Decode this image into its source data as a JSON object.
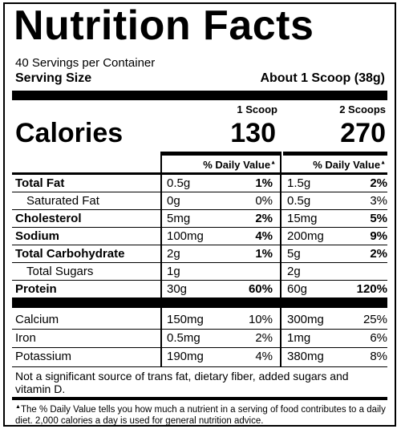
{
  "title": "Nutrition Facts",
  "servings_per_container": "40 Servings per Container",
  "serving_size_label": "Serving Size",
  "serving_size_value": "About 1 Scoop (38g)",
  "column_headers": {
    "col1": "1 Scoop",
    "col2": "2 Scoops"
  },
  "calories": {
    "label": "Calories",
    "col1": "130",
    "col2": "270"
  },
  "daily_value_header": "% Daily Value",
  "daily_value_marker": "▲",
  "nutrients": [
    {
      "name": "Total Fat",
      "bold": true,
      "indent": false,
      "amt1": "0.5g",
      "pct1": "1%",
      "amt2": "1.5g",
      "pct2": "2%"
    },
    {
      "name": "Saturated Fat",
      "bold": false,
      "indent": true,
      "amt1": "0g",
      "pct1": "0%",
      "amt2": "0.5g",
      "pct2": "3%"
    },
    {
      "name": "Cholesterol",
      "bold": true,
      "indent": false,
      "amt1": "5mg",
      "pct1": "2%",
      "amt2": "15mg",
      "pct2": "5%"
    },
    {
      "name": "Sodium",
      "bold": true,
      "indent": false,
      "amt1": "100mg",
      "pct1": "4%",
      "amt2": "200mg",
      "pct2": "9%"
    },
    {
      "name": "Total Carbohydrate",
      "bold": true,
      "indent": false,
      "amt1": "2g",
      "pct1": "1%",
      "amt2": "5g",
      "pct2": "2%"
    },
    {
      "name": "Total Sugars",
      "bold": false,
      "indent": true,
      "amt1": "1g",
      "pct1": "",
      "amt2": "2g",
      "pct2": ""
    },
    {
      "name": "Protein",
      "bold": true,
      "indent": false,
      "amt1": "30g",
      "pct1": "60%",
      "amt2": "60g",
      "pct2": "120%"
    }
  ],
  "minerals": [
    {
      "name": "Calcium",
      "amt1": "150mg",
      "pct1": "10%",
      "amt2": "300mg",
      "pct2": "25%"
    },
    {
      "name": "Iron",
      "amt1": "0.5mg",
      "pct1": "2%",
      "amt2": "1mg",
      "pct2": "6%"
    },
    {
      "name": "Potassium",
      "amt1": "190mg",
      "pct1": "4%",
      "amt2": "380mg",
      "pct2": "8%"
    }
  ],
  "footnote_main": "Not a significant source of trans fat, dietary fiber, added sugars and vitamin D.",
  "footnote_dv": "The % Daily Value tells you how much a nutrient in a serving of food contributes to a daily diet. 2,000 calories a day is used for general nutrition advice."
}
